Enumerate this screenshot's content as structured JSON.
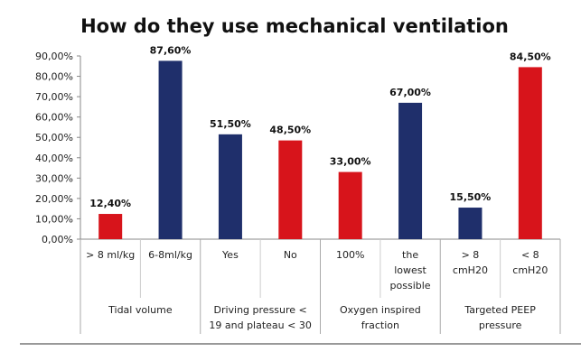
{
  "chart_data": {
    "type": "bar",
    "title": "How do they use mechanical ventilation",
    "xlabel": "",
    "ylabel": "",
    "ylim": [
      0,
      90
    ],
    "yticks": [
      "0,00%",
      "10,00%",
      "20,00%",
      "30,00%",
      "40,00%",
      "50,00%",
      "60,00%",
      "70,00%",
      "80,00%",
      "90,00%"
    ],
    "grid": false,
    "legend": "none",
    "groups": [
      {
        "label_lines": [
          "Tidal volume"
        ],
        "categories": [
          {
            "label_lines": [
              "> 8 ml/kg"
            ],
            "value": 12.4,
            "label": "12,40%",
            "color": "#d7141b"
          },
          {
            "label_lines": [
              "6-8ml/kg"
            ],
            "value": 87.6,
            "label": "87,60%",
            "color": "#1f2f6b"
          }
        ]
      },
      {
        "label_lines": [
          "Driving pressure <",
          "19  and plateau < 30"
        ],
        "categories": [
          {
            "label_lines": [
              "Yes"
            ],
            "value": 51.5,
            "label": "51,50%",
            "color": "#1f2f6b"
          },
          {
            "label_lines": [
              "No"
            ],
            "value": 48.5,
            "label": "48,50%",
            "color": "#d7141b"
          }
        ]
      },
      {
        "label_lines": [
          "Oxygen inspired",
          "fraction"
        ],
        "categories": [
          {
            "label_lines": [
              "100%"
            ],
            "value": 33.0,
            "label": "33,00%",
            "color": "#d7141b"
          },
          {
            "label_lines": [
              "the",
              "lowest",
              "possible"
            ],
            "value": 67.0,
            "label": "67,00%",
            "color": "#1f2f6b"
          }
        ]
      },
      {
        "label_lines": [
          "Targeted PEEP",
          "pressure"
        ],
        "categories": [
          {
            "label_lines": [
              "> 8",
              "cmH20"
            ],
            "value": 15.5,
            "label": "15,50%",
            "color": "#1f2f6b"
          },
          {
            "label_lines": [
              "< 8",
              "cmH20"
            ],
            "value": 84.5,
            "label": "84,50%",
            "color": "#d7141b"
          }
        ]
      }
    ]
  }
}
